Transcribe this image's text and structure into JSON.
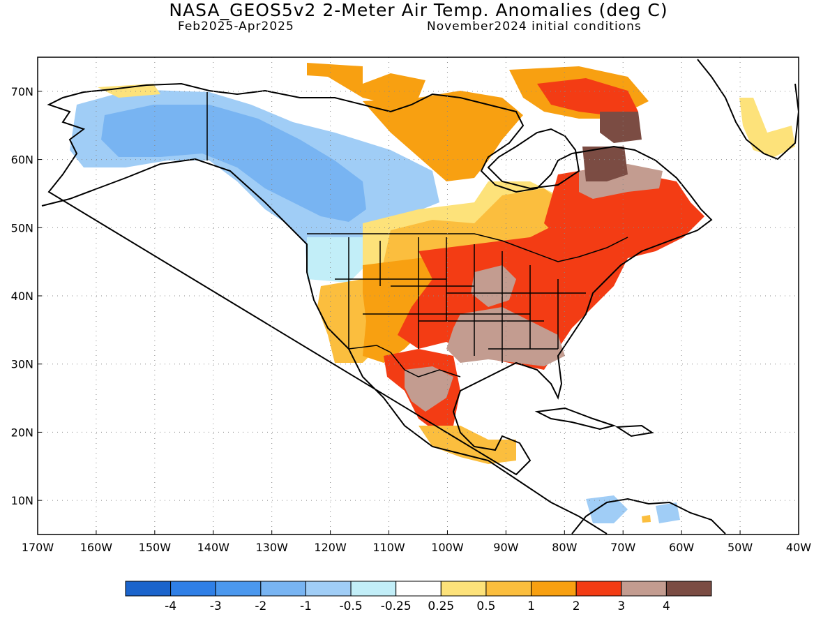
{
  "title": "NASA_GEOS5v2 2-Meter Air Temp. Anomalies (deg C)",
  "subtitle_left": "Feb2025-Apr2025",
  "subtitle_right": "November2024 initial conditions",
  "map": {
    "lon_range": [
      -170,
      -40
    ],
    "lat_range": [
      5,
      75
    ],
    "lon_ticks": [
      -170,
      -160,
      -150,
      -140,
      -130,
      -120,
      -110,
      -100,
      -90,
      -80,
      -70,
      -60,
      -50,
      -40
    ],
    "lon_tick_labels": [
      "170W",
      "160W",
      "150W",
      "140W",
      "130W",
      "120W",
      "110W",
      "100W",
      "90W",
      "80W",
      "70W",
      "60W",
      "50W",
      "40W"
    ],
    "lat_ticks": [
      10,
      20,
      30,
      40,
      50,
      60,
      70
    ],
    "lat_tick_labels": [
      "10N",
      "20N",
      "30N",
      "40N",
      "50N",
      "60N",
      "70N"
    ],
    "grid": "dotted"
  },
  "colorbar": {
    "colors": [
      "#1b64cc",
      "#2f7fe6",
      "#4b98ee",
      "#78b4f2",
      "#a0cdf6",
      "#c2eef8",
      "#ffffff",
      "#fde27a",
      "#fbbe3e",
      "#f8a011",
      "#f33c14",
      "#c39c90",
      "#7b4c43"
    ],
    "labels": [
      "-4",
      "-3",
      "-2",
      "-1",
      "-0.5",
      "-0.25",
      "0.25",
      "0.5",
      "1",
      "2",
      "3",
      "4"
    ]
  },
  "anomaly_regions": [
    {
      "name": "alaska-cold",
      "value": -1,
      "color": "#78b4f2"
    },
    {
      "name": "western-canada-cold",
      "value": -1,
      "color": "#78b4f2"
    },
    {
      "name": "pacific-northwest-cool",
      "value": -0.5,
      "color": "#a0cdf6"
    },
    {
      "name": "southwest-warm",
      "value": 1,
      "color": "#fbbe3e"
    },
    {
      "name": "central-us-warm",
      "value": 2,
      "color": "#f8a011"
    },
    {
      "name": "eastern-us-hot",
      "value": 3,
      "color": "#f33c14"
    },
    {
      "name": "southeast-very-hot",
      "value": 4,
      "color": "#c39c90"
    },
    {
      "name": "quebec-labrador-hot",
      "value": 4,
      "color": "#7b4c43"
    },
    {
      "name": "mexico-hot",
      "value": 3,
      "color": "#f33c14"
    },
    {
      "name": "arctic-islands-warm",
      "value": 2,
      "color": "#f8a011"
    },
    {
      "name": "greenland-warm",
      "value": 0.5,
      "color": "#fde27a"
    }
  ]
}
